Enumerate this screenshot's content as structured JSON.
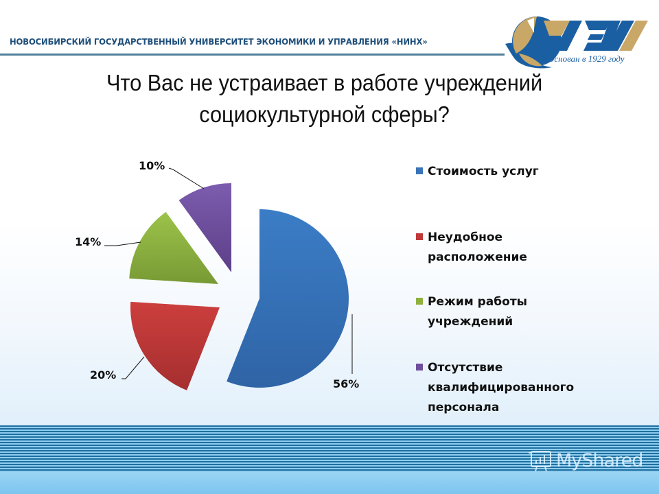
{
  "header": {
    "university_name": "НОВОСИБИРСКИЙ ГОСУДАРСТВЕННЫЙ УНИВЕРСИТЕТ ЭКОНОМИКИ И УПРАВЛЕНИЯ «НИНХ»",
    "logo_caption": "Основан в 1929 году",
    "logo_letters": "УЭУ"
  },
  "slide": {
    "title_line1": "Что Вас не устраивает в работе учреждений",
    "title_line2": "социокультурной сферы?"
  },
  "chart_data": {
    "type": "pie",
    "title": "Что Вас не устраивает в работе учреждений социокультурной сферы?",
    "categories": [
      "Стоимость услуг",
      "Неудобное расположение",
      "Режим работы учреждений",
      "Отсутствие квалифицированного персонала"
    ],
    "values": [
      56,
      20,
      14,
      10
    ],
    "labels": [
      "56%",
      "20%",
      "14%",
      "10%"
    ],
    "colors": [
      "#3a78c0",
      "#c0393a",
      "#8fb03e",
      "#6e4f9b"
    ],
    "exploded": true,
    "legend_position": "right"
  },
  "legend": {
    "items": [
      {
        "label": "Стоимость услуг",
        "color": "#3a73b8"
      },
      {
        "label": "Неудобное расположение",
        "color": "#c0393a"
      },
      {
        "label": "Режим работы учреждений",
        "color": "#8fb03e"
      },
      {
        "label": "Отсутствие квалифицированного персонала",
        "color": "#6e4f9b"
      }
    ]
  },
  "watermark": {
    "text": "MyShared"
  }
}
